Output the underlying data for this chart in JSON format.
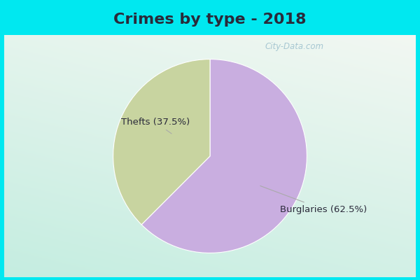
{
  "title": "Crimes by type - 2018",
  "slices": [
    {
      "label": "Burglaries (62.5%)",
      "value": 62.5,
      "color": "#c9aee0"
    },
    {
      "label": "Thefts (37.5%)",
      "value": 37.5,
      "color": "#c8d4a0"
    }
  ],
  "bg_top_color": "#00e8f0",
  "title_fontsize": 16,
  "title_fontweight": "bold",
  "title_color": "#2a2a3a",
  "label_fontsize": 9.5,
  "watermark_text": "City-Data.com",
  "border_color": "#00e8f0",
  "border_width": 6,
  "start_angle": 90
}
